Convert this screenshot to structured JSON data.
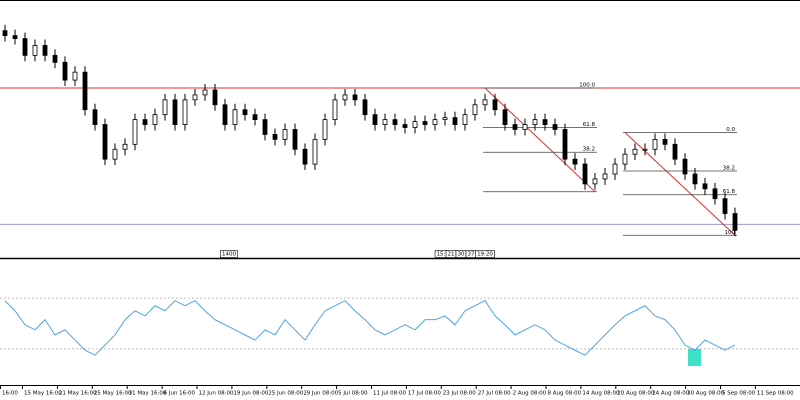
{
  "chart_data": [
    {
      "type": "candlestick",
      "ylim": [
        0,
        260
      ],
      "up_color": "#ffffff",
      "down_color": "#000000",
      "line_color": "#000000",
      "open": [
        230,
        225,
        222,
        205,
        215,
        205,
        198,
        180,
        188,
        150,
        135,
        100,
        110,
        115,
        140,
        135,
        145,
        160,
        135,
        160,
        165,
        170,
        155,
        135,
        150,
        145,
        140,
        125,
        120,
        130,
        110,
        95,
        120,
        140,
        160,
        165,
        160,
        145,
        135,
        140,
        135,
        132,
        138,
        135,
        140,
        142,
        135,
        145,
        155,
        160,
        150,
        135,
        130,
        135,
        140,
        135,
        130,
        100,
        95,
        75,
        80,
        85,
        95,
        105,
        110,
        110,
        120,
        115,
        100,
        85,
        75,
        70,
        60,
        45
      ],
      "high": [
        236,
        231,
        228,
        221,
        221,
        211,
        204,
        194,
        194,
        156,
        141,
        116,
        121,
        146,
        146,
        151,
        166,
        166,
        166,
        171,
        176,
        176,
        161,
        156,
        156,
        151,
        146,
        131,
        136,
        136,
        116,
        126,
        146,
        166,
        171,
        171,
        166,
        151,
        146,
        146,
        141,
        144,
        144,
        146,
        148,
        148,
        151,
        161,
        166,
        166,
        156,
        141,
        141,
        146,
        146,
        141,
        136,
        106,
        101,
        86,
        91,
        101,
        111,
        116,
        116,
        126,
        126,
        121,
        106,
        91,
        81,
        76,
        66,
        51
      ],
      "low": [
        219,
        216,
        199,
        199,
        199,
        192,
        174,
        174,
        144,
        129,
        94,
        94,
        104,
        109,
        129,
        129,
        139,
        129,
        129,
        154,
        159,
        149,
        129,
        129,
        139,
        134,
        119,
        114,
        114,
        104,
        89,
        89,
        114,
        134,
        154,
        154,
        139,
        129,
        129,
        129,
        126,
        126,
        129,
        129,
        134,
        129,
        129,
        139,
        149,
        144,
        129,
        124,
        124,
        129,
        129,
        124,
        94,
        89,
        69,
        69,
        74,
        79,
        89,
        99,
        104,
        104,
        109,
        94,
        79,
        69,
        64,
        54,
        39,
        22
      ],
      "close": [
        225,
        222,
        205,
        215,
        205,
        198,
        180,
        188,
        150,
        135,
        100,
        110,
        115,
        140,
        135,
        145,
        160,
        135,
        160,
        165,
        170,
        155,
        135,
        150,
        145,
        140,
        125,
        120,
        130,
        110,
        95,
        120,
        140,
        160,
        165,
        160,
        145,
        135,
        140,
        135,
        132,
        138,
        135,
        140,
        142,
        135,
        145,
        155,
        160,
        150,
        135,
        130,
        135,
        140,
        135,
        130,
        100,
        95,
        75,
        80,
        85,
        95,
        105,
        110,
        110,
        120,
        115,
        100,
        85,
        75,
        70,
        60,
        45,
        28
      ],
      "hlines": [
        {
          "price": 172,
          "color": "#e03030"
        },
        {
          "price": 34,
          "color": "#9a9ac8"
        }
      ],
      "fibonacci": [
        {
          "color": "#e03030",
          "levels": [
            {
              "price": 172,
              "label": "100.0"
            },
            {
              "price": 132,
              "label": "61.8"
            },
            {
              "price": 107,
              "label": "38.2"
            },
            {
              "price": 67
            }
          ]
        },
        {
          "color": "#e03030",
          "levels": [
            {
              "price": 127,
              "label": "0.0"
            },
            {
              "price": 88,
              "label": "38.2"
            },
            {
              "price": 64,
              "label": "61.8"
            },
            {
              "price": 23,
              "label": "100"
            }
          ]
        }
      ],
      "time_markers": [
        "1400",
        "15:",
        "21",
        "30",
        "37",
        "19:20"
      ],
      "x_labels": [
        "16:00",
        "15 May 16:00",
        "21 May 16:00",
        "25 May 16:00",
        "31 May 16:00",
        "6 Jun 16:00",
        "12 Jun 08:00",
        "19 Jun 08:00",
        "25 Jun 08:00",
        "29 Jun 08:00",
        "5 Jul 08:00",
        "11 Jul 08:00",
        "17 Jul 08:00",
        "23 Jul 08:00",
        "27 Jul 08:00",
        "2 Aug 08:00",
        "8 Aug 08:00",
        "14 Aug 08:00",
        "20 Aug 08:00",
        "24 Aug 08:00",
        "30 Aug 08:00",
        "5 Sep 08:00",
        "11 Sep 08:00"
      ]
    },
    {
      "type": "line",
      "ylim": [
        0,
        100
      ],
      "levels": [
        70,
        30
      ],
      "series": [
        {
          "color": "#3a9be8",
          "values": [
            68,
            60,
            49,
            45,
            53,
            41,
            45,
            37,
            29,
            25,
            33,
            41,
            53,
            60,
            56,
            64,
            60,
            68,
            64,
            68,
            60,
            53,
            49,
            45,
            41,
            37,
            45,
            41,
            53,
            45,
            37,
            49,
            60,
            64,
            68,
            60,
            53,
            45,
            41,
            45,
            49,
            45,
            53,
            53,
            56,
            49,
            60,
            64,
            68,
            56,
            49,
            41,
            45,
            49,
            45,
            37,
            33,
            29,
            25,
            33,
            41,
            49,
            56,
            60,
            64,
            56,
            53,
            45,
            33,
            29,
            37,
            33,
            29,
            33
          ]
        }
      ]
    }
  ]
}
